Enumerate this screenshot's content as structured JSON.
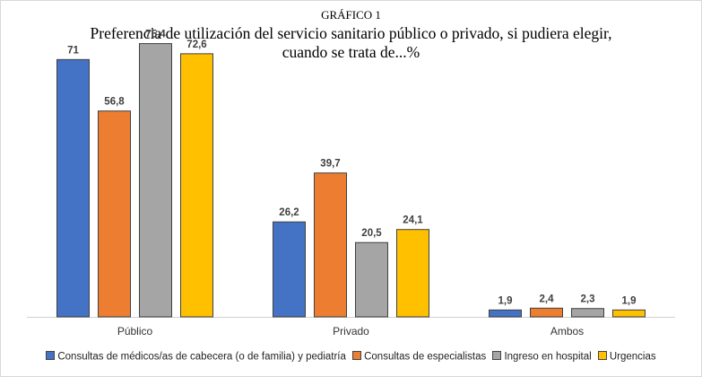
{
  "chart_data": {
    "type": "bar",
    "kicker": "GRÁFICO 1",
    "title_lines": [
      "Preferencia  de utilización  del servicio  sanitario  público  o privado,  si pudiera elegir,",
      "cuando   se trata de...%"
    ],
    "categories": [
      "Público",
      "Privado",
      "Ambos"
    ],
    "series": [
      {
        "name": "Consultas de médicos/as de cabecera (o de familia) y pediatría",
        "color": "#4472c4",
        "values": [
          71,
          26.2,
          1.9
        ],
        "labels": [
          "71",
          "26,2",
          "1,9"
        ]
      },
      {
        "name": "Consultas de especialistas",
        "color": "#ed7d31",
        "values": [
          56.8,
          39.7,
          2.4
        ],
        "labels": [
          "56,8",
          "39,7",
          "2,4"
        ]
      },
      {
        "name": "Ingreso en hospital",
        "color": "#a5a5a5",
        "values": [
          75.4,
          20.5,
          2.3
        ],
        "labels": [
          "75,4",
          "20,5",
          "2,3"
        ]
      },
      {
        "name": "Urgencias",
        "color": "#ffc000",
        "values": [
          72.6,
          24.1,
          1.9
        ],
        "labels": [
          "72,6",
          "24,1",
          "1,9"
        ]
      }
    ],
    "ylim": [
      0,
      80
    ],
    "grid": false,
    "legend_position": "bottom"
  }
}
